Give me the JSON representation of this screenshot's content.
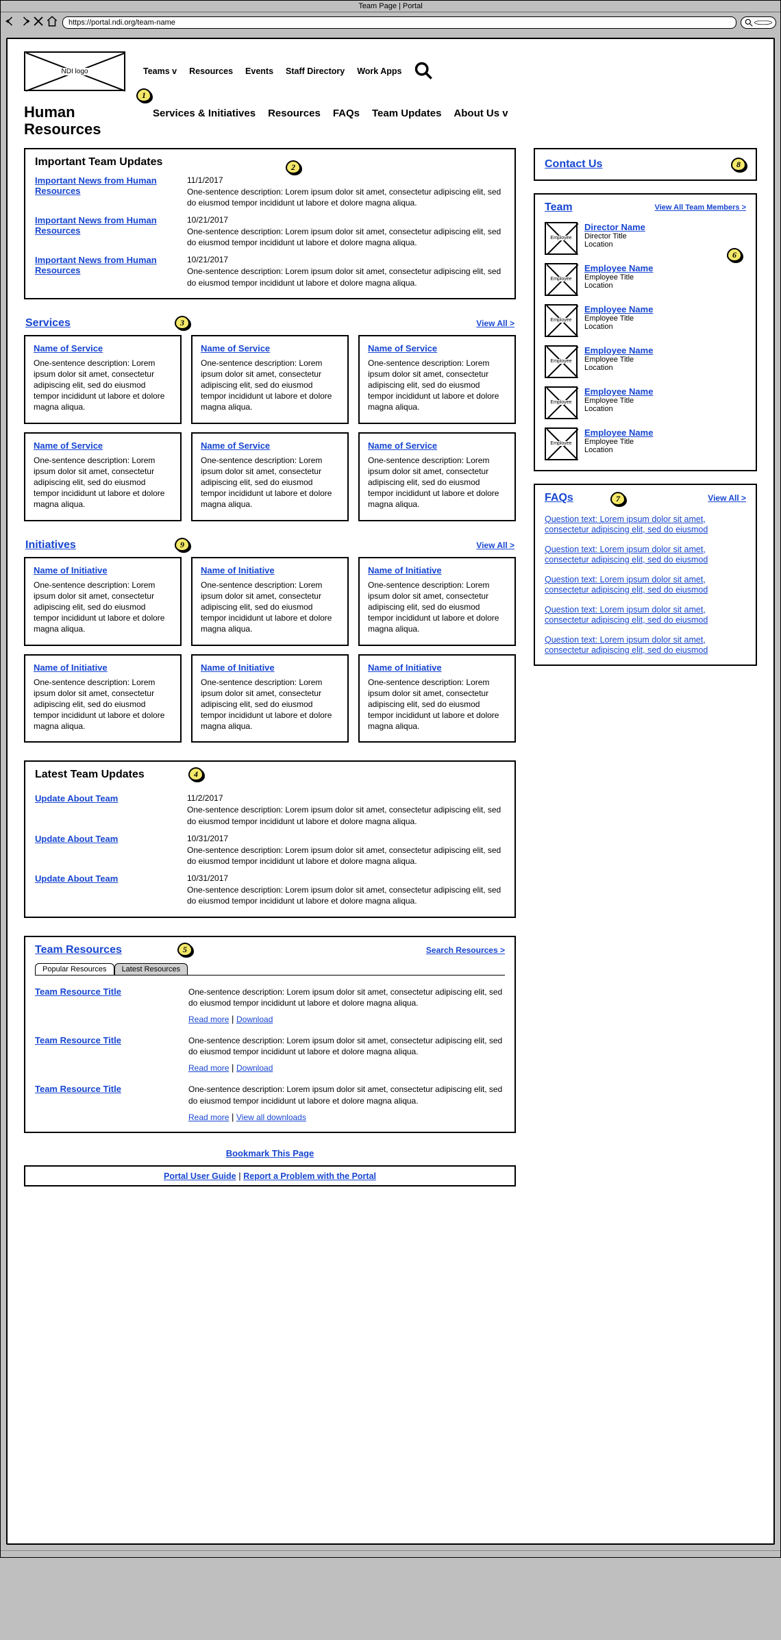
{
  "browser": {
    "title": "Team Page | Portal",
    "url": "https://portal.ndi.org/team-name"
  },
  "logo_text": "NDI logo",
  "top_nav": [
    "Teams v",
    "Resources",
    "Events",
    "Staff Directory",
    "Work Apps"
  ],
  "page_title": "Human Resources",
  "sub_nav": [
    "Services & Initiatives",
    "Resources",
    "FAQs",
    "Team Updates",
    "About Us v"
  ],
  "annotations": [
    "1",
    "2",
    "3",
    "4",
    "5",
    "6",
    "7",
    "8",
    "9"
  ],
  "important_updates": {
    "heading": "Important Team Updates",
    "items": [
      {
        "link": "Important News from Human Resources",
        "date": "11/1/2017",
        "desc": "One-sentence description: Lorem ipsum dolor sit amet, consectetur adipiscing elit, sed do eiusmod tempor incididunt ut labore et dolore magna aliqua."
      },
      {
        "link": "Important News from Human Resources",
        "date": "10/21/2017",
        "desc": "One-sentence description: Lorem ipsum dolor sit amet, consectetur adipiscing elit, sed do eiusmod tempor incididunt ut labore et dolore magna aliqua."
      },
      {
        "link": "Important News from Human Resources",
        "date": "10/21/2017",
        "desc": "One-sentence description: Lorem ipsum dolor sit amet, consectetur adipiscing elit, sed do eiusmod tempor incididunt ut labore et dolore magna aliqua."
      }
    ]
  },
  "services": {
    "heading": "Services",
    "view_all": "View All >",
    "cards": [
      {
        "title": "Name of Service",
        "desc": "One-sentence description: Lorem ipsum dolor sit amet, consectetur adipiscing elit, sed do eiusmod tempor incididunt ut labore et dolore magna aliqua."
      },
      {
        "title": "Name of Service",
        "desc": "One-sentence description: Lorem ipsum dolor sit amet, consectetur adipiscing elit, sed do eiusmod tempor incididunt ut labore et dolore magna aliqua."
      },
      {
        "title": "Name of Service",
        "desc": "One-sentence description: Lorem ipsum dolor sit amet, consectetur adipiscing elit, sed do eiusmod tempor incididunt ut labore et dolore magna aliqua."
      },
      {
        "title": "Name of Service",
        "desc": "One-sentence description: Lorem ipsum dolor sit amet, consectetur adipiscing elit, sed do eiusmod tempor incididunt ut labore et dolore magna aliqua."
      },
      {
        "title": "Name of Service",
        "desc": "One-sentence description: Lorem ipsum dolor sit amet, consectetur adipiscing elit, sed do eiusmod tempor incididunt ut labore et dolore magna aliqua."
      },
      {
        "title": "Name of Service",
        "desc": "One-sentence description: Lorem ipsum dolor sit amet, consectetur adipiscing elit, sed do eiusmod tempor incididunt ut labore et dolore magna aliqua."
      }
    ]
  },
  "initiatives": {
    "heading": "Initiatives",
    "view_all": "View All >",
    "cards": [
      {
        "title": "Name of Initiative",
        "desc": "One-sentence description: Lorem ipsum dolor sit amet, consectetur adipiscing elit, sed do eiusmod tempor incididunt ut labore et dolore magna aliqua."
      },
      {
        "title": "Name of Initiative",
        "desc": "One-sentence description: Lorem ipsum dolor sit amet, consectetur adipiscing elit, sed do eiusmod tempor incididunt ut labore et dolore magna aliqua."
      },
      {
        "title": "Name of Initiative",
        "desc": "One-sentence description: Lorem ipsum dolor sit amet, consectetur adipiscing elit, sed do eiusmod tempor incididunt ut labore et dolore magna aliqua."
      },
      {
        "title": "Name of Initiative",
        "desc": "One-sentence description: Lorem ipsum dolor sit amet, consectetur adipiscing elit, sed do eiusmod tempor incididunt ut labore et dolore magna aliqua."
      },
      {
        "title": "Name of Initiative",
        "desc": "One-sentence description: Lorem ipsum dolor sit amet, consectetur adipiscing elit, sed do eiusmod tempor incididunt ut labore et dolore magna aliqua."
      },
      {
        "title": "Name of Initiative",
        "desc": "One-sentence description: Lorem ipsum dolor sit amet, consectetur adipiscing elit, sed do eiusmod tempor incididunt ut labore et dolore magna aliqua."
      }
    ]
  },
  "latest_updates": {
    "heading": "Latest Team Updates",
    "items": [
      {
        "link": "Update About Team",
        "date": "11/2/2017",
        "desc": "One-sentence description: Lorem ipsum dolor sit amet, consectetur adipiscing elit, sed do eiusmod tempor incididunt ut labore et dolore magna aliqua."
      },
      {
        "link": "Update About Team",
        "date": "10/31/2017",
        "desc": "One-sentence description: Lorem ipsum dolor sit amet, consectetur adipiscing elit, sed do eiusmod tempor incididunt ut labore et dolore magna aliqua."
      },
      {
        "link": "Update About Team",
        "date": "10/31/2017",
        "desc": "One-sentence description: Lorem ipsum dolor sit amet, consectetur adipiscing elit, sed do eiusmod tempor incididunt ut labore et dolore magna aliqua."
      }
    ]
  },
  "resources": {
    "heading": "Team Resources",
    "search_link": "Search Resources >",
    "tabs": [
      "Popular Resources",
      "Latest Resources"
    ],
    "items": [
      {
        "link": "Team Resource Title",
        "desc": "One-sentence description: Lorem ipsum dolor sit amet, consectetur adipiscing elit, sed do eiusmod tempor incididunt ut labore et dolore magna aliqua.",
        "a1": "Read more",
        "a2": "Download"
      },
      {
        "link": "Team Resource Title",
        "desc": "One-sentence description: Lorem ipsum dolor sit amet, consectetur adipiscing elit, sed do eiusmod tempor incididunt ut labore et dolore magna aliqua.",
        "a1": "Read more",
        "a2": "Download"
      },
      {
        "link": "Team Resource Title",
        "desc": "One-sentence description: Lorem ipsum dolor sit amet, consectetur adipiscing elit, sed do eiusmod tempor incididunt ut labore et dolore magna aliqua.",
        "a1": "Read more",
        "a2": "View all downloads"
      }
    ]
  },
  "contact_us": "Contact Us",
  "team_box": {
    "heading": "Team",
    "view_all": "View All Team Members >",
    "avatar_label": "Employee",
    "members": [
      {
        "name": "Director Name",
        "title": "Director Title",
        "loc": "Location"
      },
      {
        "name": "Employee Name",
        "title": "Employee Title",
        "loc": "Location"
      },
      {
        "name": "Employee Name",
        "title": "Employee Title",
        "loc": "Location"
      },
      {
        "name": "Employee Name",
        "title": "Employee Title",
        "loc": "Location"
      },
      {
        "name": "Employee Name",
        "title": "Employee Title",
        "loc": "Location"
      },
      {
        "name": "Employee Name",
        "title": "Employee Title",
        "loc": "Location"
      }
    ]
  },
  "faqs": {
    "heading": "FAQs",
    "view_all": "View All >",
    "items": [
      "Question text: Lorem ipsum dolor sit amet, consectetur adipiscing elit, sed do eiusmod",
      "Question text: Lorem ipsum dolor sit amet, consectetur adipiscing elit, sed do eiusmod",
      "Question text: Lorem ipsum dolor sit amet, consectetur adipiscing elit, sed do eiusmod",
      "Question text: Lorem ipsum dolor sit amet, consectetur adipiscing elit, sed do eiusmod",
      "Question text: Lorem ipsum dolor sit amet, consectetur adipiscing elit, sed do eiusmod"
    ]
  },
  "bookmark": "Bookmark This Page",
  "footer": {
    "a": "Portal User Guide",
    "b": "Report a Problem with the Portal"
  }
}
